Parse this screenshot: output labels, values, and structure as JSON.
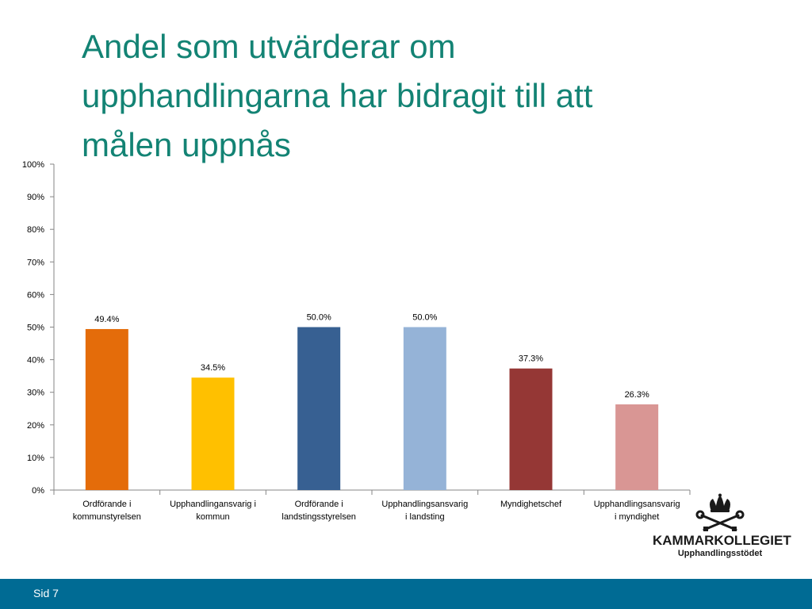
{
  "slide": {
    "title_lines": [
      "Andel som utvärderar om",
      "upphandlingarna har bidragit till att",
      "målen uppnås"
    ],
    "page_label": "Sid 7"
  },
  "logo": {
    "name": "KAMMARKOLLEGIET",
    "subtitle": "Upphandlingsstödet",
    "icon": "crown-keys-icon"
  },
  "chart_data": {
    "type": "bar",
    "title": "",
    "xlabel": "",
    "ylabel": "",
    "ylim": [
      0,
      100
    ],
    "yticks": [
      "0%",
      "10%",
      "20%",
      "30%",
      "40%",
      "50%",
      "60%",
      "70%",
      "80%",
      "90%",
      "100%"
    ],
    "grid": false,
    "categories": [
      [
        "Ordförande i",
        "kommunstyrelsen"
      ],
      [
        "Upphandlingansvarig i",
        "kommun"
      ],
      [
        "Ordförande i",
        "landstingsstyrelsen"
      ],
      [
        "Upphandlingsansvarig",
        "i landsting"
      ],
      [
        "Myndighetschef"
      ],
      [
        "Upphandlingsansvarig",
        "i myndighet"
      ]
    ],
    "values": [
      49.4,
      34.5,
      50.0,
      50.0,
      37.3,
      26.3
    ],
    "data_labels": [
      "49.4%",
      "34.5%",
      "50.0%",
      "50.0%",
      "37.3%",
      "26.3%"
    ],
    "colors": [
      "#e46c0a",
      "#ffc000",
      "#376092",
      "#95b3d7",
      "#953735",
      "#d99694"
    ]
  },
  "colors": {
    "title": "#138374",
    "footer": "#006b94"
  }
}
